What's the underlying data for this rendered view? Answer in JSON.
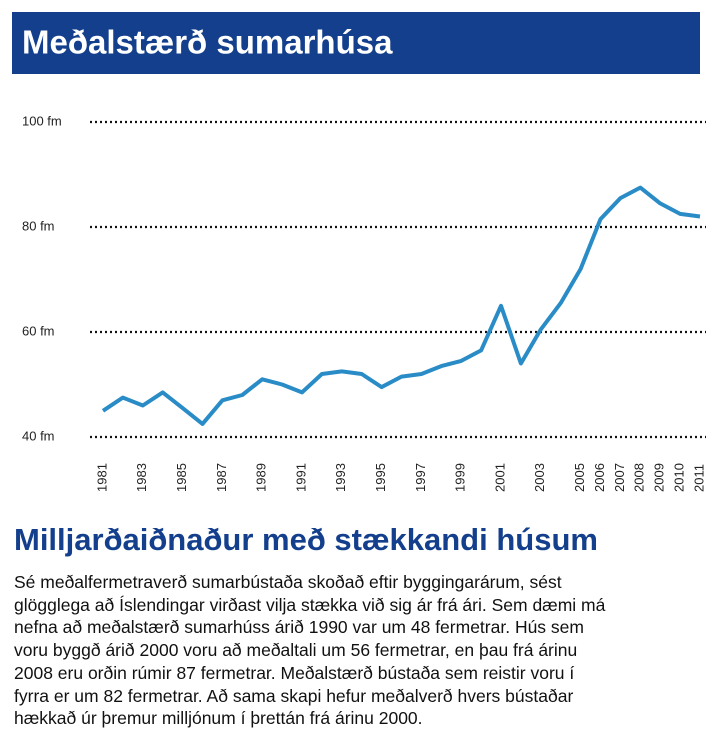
{
  "chart_data": {
    "type": "line",
    "title": "Meðalstærð sumarhúsa",
    "x": [
      1981,
      1982,
      1983,
      1984,
      1985,
      1986,
      1987,
      1988,
      1989,
      1990,
      1991,
      1992,
      1993,
      1994,
      1995,
      1996,
      1997,
      1998,
      1999,
      2000,
      2001,
      2002,
      2003,
      2004,
      2005,
      2006,
      2007,
      2008,
      2009,
      2010,
      2011
    ],
    "values": [
      45,
      47.5,
      46,
      48.5,
      45.5,
      42.5,
      47,
      48,
      51,
      50,
      48.5,
      52,
      52.5,
      52,
      49.5,
      51.5,
      52,
      53.5,
      54.5,
      56.5,
      65,
      54,
      60.5,
      65.5,
      72,
      81.5,
      85.5,
      87.5,
      84.5,
      82.5,
      82
    ],
    "color": "#2a8cc6",
    "xlim": [
      1981,
      2011
    ],
    "xticks": [
      1981,
      1983,
      1985,
      1987,
      1989,
      1991,
      1993,
      1995,
      1997,
      1999,
      2001,
      2003,
      2005,
      2006,
      2007,
      2008,
      2009,
      2010,
      2011
    ],
    "ylim": [
      40,
      100
    ],
    "yticks": [
      {
        "value": 40,
        "label": "40 fm"
      },
      {
        "value": 60,
        "label": "60 fm"
      },
      {
        "value": 80,
        "label": "80 fm"
      },
      {
        "value": 100,
        "label": "100 fm"
      }
    ],
    "grid": true
  },
  "article": {
    "heading": "Milljarðaiðnaður með stækkandi húsum",
    "lines": [
      "Sé meðalfermetraverð sumarbústaða skoðað eftir byggingarárum, sést",
      "glögglega að Íslendingar virðast vilja stækka við sig ár frá ári. Sem dæmi má",
      "nefna að meðalstærð sumarhúss árið 1990 var um 48 fermetrar. Hús sem",
      "voru byggð árið 2000 voru að meðaltali um 56 fermetrar, en þau frá árinu",
      "2008 eru orðin rúmir 87 fermetrar. Meðalstærð bústaða sem reistir voru í",
      "fyrra er um 82 fermetrar. Að sama skapi hefur meðalverð hvers bústaðar",
      "hækkað úr þremur milljónum í þrettán frá árinu 2000."
    ]
  }
}
